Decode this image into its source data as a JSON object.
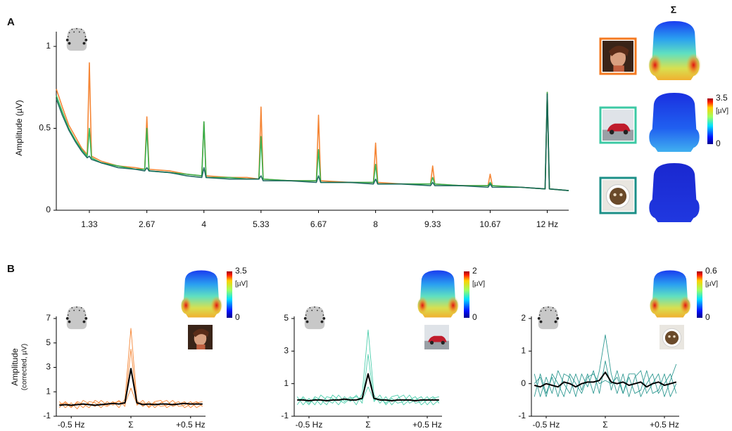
{
  "panel_labels": [
    "A",
    "B"
  ],
  "chart_data": [
    {
      "type": "line",
      "y_label": "Amplitude (µV)",
      "topo_title": "Σ",
      "x": [
        0.56,
        0.7,
        0.85,
        1.0,
        1.15,
        1.28,
        1.33,
        1.38,
        1.6,
        2.0,
        2.4,
        2.62,
        2.67,
        2.72,
        3.2,
        3.6,
        3.95,
        4,
        4.05,
        4.6,
        5.0,
        5.28,
        5.33,
        5.38,
        6.0,
        6.62,
        6.67,
        6.72,
        7.4,
        7.95,
        8,
        8.05,
        8.6,
        9.28,
        9.33,
        9.38,
        10.0,
        10.62,
        10.67,
        10.72,
        11.4,
        11.95,
        12,
        12.05,
        12.5
      ],
      "xlim": [
        0.56,
        12.5
      ],
      "xticks": [
        1.33,
        2.67,
        4,
        5.33,
        6.67,
        8,
        9.33,
        10.67,
        {
          "value": 12,
          "label": "12 Hz"
        }
      ],
      "ylim": [
        0,
        1
      ],
      "yticks": [
        0,
        0.5,
        1
      ],
      "series": [
        {
          "color": "#f47920",
          "values": [
            0.74,
            0.63,
            0.52,
            0.45,
            0.38,
            0.34,
            0.9,
            0.33,
            0.3,
            0.27,
            0.26,
            0.25,
            0.57,
            0.25,
            0.24,
            0.22,
            0.21,
            0.54,
            0.21,
            0.2,
            0.2,
            0.19,
            0.63,
            0.19,
            0.18,
            0.18,
            0.58,
            0.18,
            0.17,
            0.17,
            0.41,
            0.17,
            0.16,
            0.16,
            0.27,
            0.16,
            0.15,
            0.15,
            0.22,
            0.15,
            0.14,
            0.13,
            0.72,
            0.13,
            0.12
          ]
        },
        {
          "color": "#22b24c",
          "values": [
            0.7,
            0.6,
            0.5,
            0.43,
            0.37,
            0.33,
            0.5,
            0.32,
            0.29,
            0.27,
            0.25,
            0.25,
            0.5,
            0.24,
            0.23,
            0.22,
            0.21,
            0.54,
            0.2,
            0.2,
            0.19,
            0.19,
            0.45,
            0.19,
            0.18,
            0.18,
            0.37,
            0.17,
            0.17,
            0.17,
            0.28,
            0.16,
            0.16,
            0.16,
            0.2,
            0.16,
            0.15,
            0.15,
            0.17,
            0.15,
            0.14,
            0.13,
            0.72,
            0.13,
            0.12
          ]
        },
        {
          "color": "#0f5e56",
          "values": [
            0.68,
            0.58,
            0.49,
            0.42,
            0.36,
            0.32,
            0.33,
            0.31,
            0.29,
            0.26,
            0.25,
            0.24,
            0.26,
            0.24,
            0.23,
            0.21,
            0.2,
            0.26,
            0.2,
            0.19,
            0.19,
            0.19,
            0.21,
            0.18,
            0.18,
            0.17,
            0.21,
            0.17,
            0.17,
            0.16,
            0.19,
            0.16,
            0.16,
            0.15,
            0.17,
            0.15,
            0.15,
            0.14,
            0.16,
            0.14,
            0.14,
            0.13,
            0.71,
            0.13,
            0.12
          ]
        }
      ],
      "colorbar": {
        "ticks": [
          0,
          3.5
        ],
        "unit": "[µV]"
      }
    },
    {
      "type": "line",
      "y_label": "Amplitude",
      "y_label_sub": "(corrected, µV)",
      "categories": [
        null,
        null,
        "-0.5 Hz",
        null,
        null,
        null,
        null,
        null,
        null,
        null,
        null,
        null,
        "Σ",
        null,
        null,
        null,
        null,
        null,
        null,
        null,
        null,
        null,
        "+0.5 Hz",
        null,
        null
      ],
      "ylim": [
        -1,
        7
      ],
      "yticks": [
        -1,
        1,
        3,
        5,
        7
      ],
      "series": [
        {
          "color": "#f47920",
          "values": [
            0.2,
            -0.3,
            0.1,
            -0.4,
            0.3,
            0,
            -0.2,
            0.3,
            -0.1,
            0.2,
            -0.3,
            0.4,
            6.2,
            0.3,
            -0.2,
            0.2,
            -0.3,
            0.1,
            0.3,
            -0.2,
            0,
            0.2,
            -0.3,
            0.1,
            0.2
          ]
        },
        {
          "color": "#f47920",
          "values": [
            -0.3,
            0.2,
            -0.2,
            0.1,
            -0.3,
            0.2,
            0.1,
            -0.3,
            0.2,
            -0.1,
            0.3,
            -0.2,
            4.5,
            -0.1,
            0.3,
            -0.3,
            0.1,
            -0.2,
            -0.1,
            0.3,
            -0.2,
            -0.1,
            0.2,
            -0.3,
            0
          ]
        },
        {
          "color": "#f47920",
          "values": [
            0,
            0.1,
            -0.3,
            0.2,
            0,
            -0.3,
            0.3,
            0,
            -0.2,
            0.1,
            0.2,
            0,
            1.3,
            0,
            0.1,
            -0.2,
            0.2,
            0.3,
            -0.3,
            0,
            0.2,
            -0.3,
            0,
            0.2,
            -0.2
          ]
        },
        {
          "color": "#000000",
          "values": [
            -0.1,
            -0.05,
            -0.1,
            -0.05,
            0,
            -0.05,
            -0.1,
            -0.05,
            0,
            0.05,
            0,
            0.1,
            2.9,
            0.1,
            -0.05,
            0,
            -0.05,
            0,
            0,
            -0.05,
            0,
            0.05,
            0,
            0,
            0
          ]
        }
      ],
      "colorbar": {
        "ticks": [
          0,
          3.5
        ],
        "unit": "[µV]"
      }
    },
    {
      "type": "line",
      "categories": [
        null,
        null,
        "-0.5 Hz",
        null,
        null,
        null,
        null,
        null,
        null,
        null,
        null,
        null,
        "Σ",
        null,
        null,
        null,
        null,
        null,
        null,
        null,
        null,
        null,
        "+0.5 Hz",
        null,
        null
      ],
      "ylim": [
        -1,
        5
      ],
      "yticks": [
        -1,
        1,
        3,
        5
      ],
      "series": [
        {
          "color": "#3cc9a4",
          "values": [
            0.2,
            -0.3,
            0.1,
            -0.3,
            0.3,
            0,
            -0.2,
            0.3,
            -0.1,
            0.2,
            -0.3,
            0.4,
            4.3,
            0.3,
            -0.2,
            0.2,
            -0.3,
            0.1,
            0.3,
            -0.2,
            0,
            0.2,
            -0.3,
            0.1,
            0.2
          ]
        },
        {
          "color": "#3cc9a4",
          "values": [
            -0.3,
            0.2,
            -0.2,
            0.1,
            -0.3,
            0.2,
            0.1,
            -0.3,
            0.2,
            -0.1,
            0.3,
            -0.2,
            2.8,
            -0.1,
            0.3,
            -0.3,
            0.1,
            -0.2,
            -0.1,
            0.3,
            -0.2,
            -0.1,
            0.2,
            -0.3,
            0
          ]
        },
        {
          "color": "#3cc9a4",
          "values": [
            0,
            0.1,
            -0.3,
            0.2,
            0,
            -0.3,
            0.3,
            0,
            -0.2,
            0.1,
            0.2,
            0,
            0.8,
            0,
            0.1,
            -0.2,
            0.2,
            0.3,
            -0.3,
            0,
            0.2,
            -0.3,
            0,
            0.2,
            -0.2
          ]
        },
        {
          "color": "#000000",
          "values": [
            0,
            0,
            -0.05,
            0,
            0,
            -0.05,
            0,
            0,
            0.05,
            0,
            0,
            0.1,
            1.6,
            0.1,
            0,
            0,
            -0.05,
            0,
            0,
            0,
            -0.05,
            0,
            0,
            0,
            0
          ]
        }
      ],
      "colorbar": {
        "ticks": [
          0,
          2
        ],
        "unit": "[µV]"
      }
    },
    {
      "type": "line",
      "categories": [
        null,
        null,
        "-0.5 Hz",
        null,
        null,
        null,
        null,
        null,
        null,
        null,
        null,
        null,
        "Σ",
        null,
        null,
        null,
        null,
        null,
        null,
        null,
        null,
        null,
        "+0.5 Hz",
        null,
        null
      ],
      "ylim": [
        -1,
        2
      ],
      "yticks": [
        -1,
        0,
        1,
        2
      ],
      "series": [
        {
          "color": "#1b8f87",
          "values": [
            0.3,
            -0.4,
            0.2,
            -0.3,
            0.4,
            0,
            -0.3,
            0.3,
            -0.2,
            0.3,
            -0.3,
            0.4,
            1.5,
            0.3,
            -0.3,
            0.3,
            -0.4,
            0.2,
            0.4,
            -0.3,
            0,
            0.3,
            -0.4,
            0.1,
            0.6
          ]
        },
        {
          "color": "#1b8f87",
          "values": [
            -0.4,
            0.3,
            -0.3,
            0.2,
            -0.4,
            0.3,
            0.2,
            -0.4,
            0.3,
            -0.1,
            0.4,
            -0.3,
            0.7,
            -0.2,
            0.4,
            -0.3,
            0.2,
            -0.3,
            -0.2,
            0.4,
            -0.3,
            -0.2,
            0.3,
            -0.4,
            0
          ]
        },
        {
          "color": "#1b8f87",
          "values": [
            0,
            0.2,
            -0.4,
            0.3,
            0,
            -0.4,
            0.3,
            0,
            -0.3,
            0.2,
            0.3,
            0,
            0.1,
            0,
            0.2,
            -0.3,
            0.3,
            0.3,
            -0.4,
            0,
            0.3,
            -0.3,
            0,
            0.3,
            -0.3
          ]
        },
        {
          "color": "#000000",
          "values": [
            -0.05,
            -0.1,
            0,
            -0.05,
            -0.1,
            0.05,
            0,
            -0.1,
            0,
            0.05,
            0.05,
            0.1,
            0.35,
            0.05,
            0,
            0.05,
            -0.05,
            0,
            0.05,
            -0.1,
            0,
            0.05,
            -0.05,
            0,
            0.05
          ]
        }
      ],
      "colorbar": {
        "ticks": [
          0,
          0.6
        ],
        "unit": "[µV]"
      }
    }
  ]
}
